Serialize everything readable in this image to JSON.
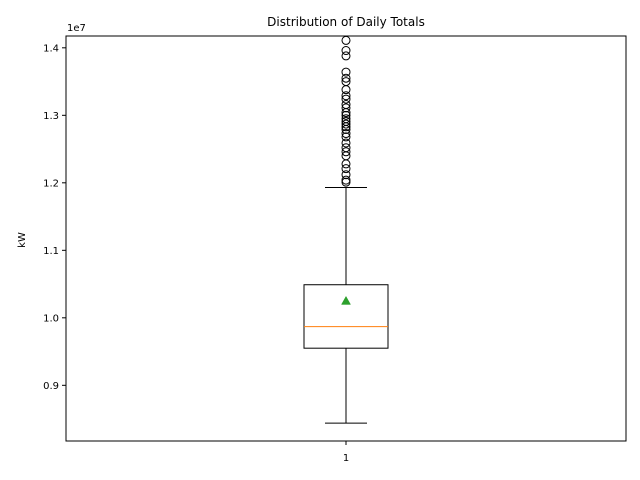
{
  "chart_data": {
    "type": "box",
    "title": "Distribution of Daily Totals",
    "xlabel": "",
    "ylabel": "kW",
    "offset_label": "1e7",
    "ylim": [
      0.8175,
      1.4175
    ],
    "yticks": [
      {
        "value": 0.9,
        "label": "0.9"
      },
      {
        "value": 1.0,
        "label": "1.0"
      },
      {
        "value": 1.1,
        "label": "1.1"
      },
      {
        "value": 1.2,
        "label": "1.2"
      },
      {
        "value": 1.3,
        "label": "1.3"
      },
      {
        "value": 1.4,
        "label": "1.4"
      }
    ],
    "categories": [
      "1"
    ],
    "boxes": [
      {
        "category": "1",
        "whisker_low": 0.844,
        "q1": 0.955,
        "median": 0.987,
        "q3": 1.049,
        "whisker_high": 1.193,
        "mean": 1.025,
        "outliers": [
          1.201,
          1.204,
          1.212,
          1.221,
          1.228,
          1.24,
          1.246,
          1.252,
          1.259,
          1.268,
          1.273,
          1.279,
          1.283,
          1.287,
          1.291,
          1.295,
          1.3,
          1.304,
          1.311,
          1.316,
          1.324,
          1.329,
          1.338,
          1.35,
          1.355,
          1.364,
          1.388,
          1.396,
          1.411
        ]
      }
    ],
    "colors": {
      "box": "#000000",
      "median": "#ff7f0e",
      "mean": "#2ca02c",
      "outlier": "#000000"
    }
  }
}
